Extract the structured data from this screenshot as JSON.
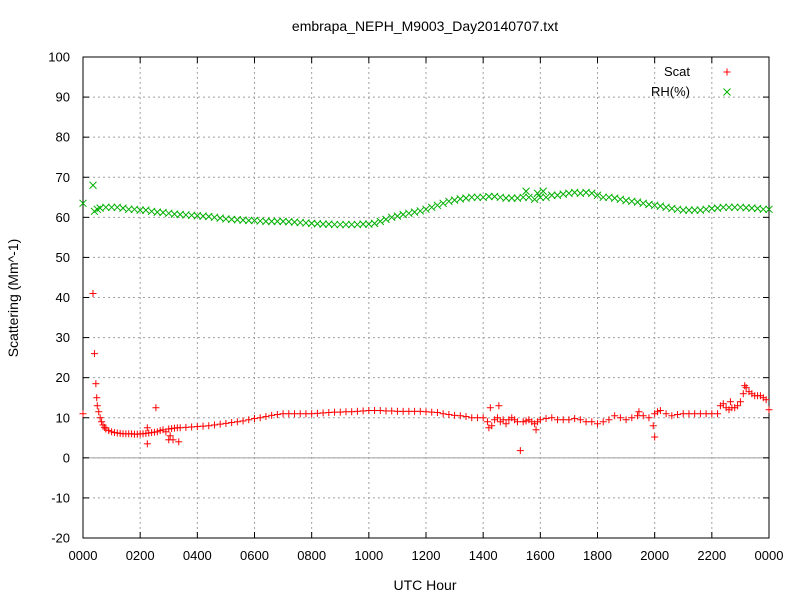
{
  "chart_data": {
    "type": "scatter",
    "title": "embrapa_NEPH_M9003_Day20140707.txt",
    "xlabel": "UTC Hour",
    "ylabel": "Scattering (Mm^-1)",
    "xlim": [
      0,
      24
    ],
    "ylim": [
      -20,
      100
    ],
    "xticks": [
      0,
      2,
      4,
      6,
      8,
      10,
      12,
      14,
      16,
      18,
      20,
      22,
      24
    ],
    "xtick_labels": [
      "0000",
      "0200",
      "0400",
      "0600",
      "0800",
      "1000",
      "1200",
      "1400",
      "1600",
      "1800",
      "2000",
      "2200",
      "0000"
    ],
    "yticks": [
      -20,
      -10,
      0,
      10,
      20,
      30,
      40,
      50,
      60,
      70,
      80,
      90,
      100
    ],
    "ytick_labels": [
      "-20",
      "-10",
      "0",
      "10",
      "20",
      "30",
      "40",
      "50",
      "60",
      "70",
      "80",
      "90",
      "100"
    ],
    "grid": true,
    "zero_line": true,
    "legend_position": "top-right",
    "series": [
      {
        "name": "Scat",
        "marker": "+",
        "color": "#ff0000",
        "points": [
          [
            0.0,
            11.0
          ],
          [
            0.35,
            41.0
          ],
          [
            0.4,
            26.0
          ],
          [
            0.45,
            18.5
          ],
          [
            0.48,
            15.0
          ],
          [
            0.5,
            13.0
          ],
          [
            0.55,
            11.5
          ],
          [
            0.6,
            10.0
          ],
          [
            0.65,
            9.0
          ],
          [
            0.7,
            8.2
          ],
          [
            0.75,
            7.6
          ],
          [
            0.8,
            7.2
          ],
          [
            0.9,
            6.8
          ],
          [
            1.0,
            6.5
          ],
          [
            1.1,
            6.3
          ],
          [
            1.2,
            6.2
          ],
          [
            1.3,
            6.1
          ],
          [
            1.4,
            6.0
          ],
          [
            1.5,
            6.0
          ],
          [
            1.6,
            6.0
          ],
          [
            1.7,
            6.0
          ],
          [
            1.8,
            5.9
          ],
          [
            1.9,
            5.9
          ],
          [
            2.0,
            6.0
          ],
          [
            2.1,
            6.0
          ],
          [
            2.2,
            6.1
          ],
          [
            2.25,
            3.5
          ],
          [
            2.25,
            7.5
          ],
          [
            2.3,
            6.2
          ],
          [
            2.4,
            6.3
          ],
          [
            2.5,
            6.4
          ],
          [
            2.55,
            12.5
          ],
          [
            2.6,
            6.5
          ],
          [
            2.7,
            6.8
          ],
          [
            2.8,
            7.0
          ],
          [
            2.9,
            6.5
          ],
          [
            3.0,
            4.5
          ],
          [
            3.0,
            7.2
          ],
          [
            3.05,
            5.5
          ],
          [
            3.1,
            7.3
          ],
          [
            3.15,
            4.5
          ],
          [
            3.2,
            7.4
          ],
          [
            3.3,
            7.5
          ],
          [
            3.35,
            4.0
          ],
          [
            3.4,
            7.5
          ],
          [
            3.6,
            7.6
          ],
          [
            3.8,
            7.7
          ],
          [
            4.0,
            7.8
          ],
          [
            4.2,
            7.9
          ],
          [
            4.4,
            8.0
          ],
          [
            4.6,
            8.2
          ],
          [
            4.8,
            8.4
          ],
          [
            5.0,
            8.6
          ],
          [
            5.2,
            8.8
          ],
          [
            5.4,
            9.0
          ],
          [
            5.6,
            9.2
          ],
          [
            5.8,
            9.5
          ],
          [
            6.0,
            9.8
          ],
          [
            6.2,
            10.0
          ],
          [
            6.4,
            10.3
          ],
          [
            6.6,
            10.6
          ],
          [
            6.8,
            10.8
          ],
          [
            7.0,
            11.0
          ],
          [
            7.2,
            11.0
          ],
          [
            7.4,
            11.0
          ],
          [
            7.6,
            11.0
          ],
          [
            7.8,
            11.0
          ],
          [
            8.0,
            11.0
          ],
          [
            8.2,
            11.1
          ],
          [
            8.4,
            11.2
          ],
          [
            8.6,
            11.3
          ],
          [
            8.8,
            11.4
          ],
          [
            9.0,
            11.4
          ],
          [
            9.2,
            11.5
          ],
          [
            9.4,
            11.5
          ],
          [
            9.6,
            11.6
          ],
          [
            9.8,
            11.7
          ],
          [
            10.0,
            11.8
          ],
          [
            10.2,
            11.8
          ],
          [
            10.4,
            11.8
          ],
          [
            10.6,
            11.7
          ],
          [
            10.8,
            11.7
          ],
          [
            11.0,
            11.6
          ],
          [
            11.2,
            11.6
          ],
          [
            11.4,
            11.6
          ],
          [
            11.6,
            11.6
          ],
          [
            11.8,
            11.6
          ],
          [
            12.0,
            11.5
          ],
          [
            12.2,
            11.4
          ],
          [
            12.4,
            11.3
          ],
          [
            12.6,
            11.0
          ],
          [
            12.8,
            10.8
          ],
          [
            13.0,
            10.6
          ],
          [
            13.2,
            10.5
          ],
          [
            13.4,
            10.3
          ],
          [
            13.6,
            10.0
          ],
          [
            13.8,
            10.0
          ],
          [
            14.0,
            10.0
          ],
          [
            14.15,
            9.0
          ],
          [
            14.2,
            7.5
          ],
          [
            14.25,
            12.5
          ],
          [
            14.3,
            8.0
          ],
          [
            14.4,
            9.5
          ],
          [
            14.5,
            10.0
          ],
          [
            14.55,
            13.0
          ],
          [
            14.6,
            9.0
          ],
          [
            14.7,
            9.5
          ],
          [
            14.8,
            8.5
          ],
          [
            14.9,
            9.5
          ],
          [
            15.0,
            10.0
          ],
          [
            15.1,
            9.5
          ],
          [
            15.2,
            9.0
          ],
          [
            15.3,
            1.8
          ],
          [
            15.4,
            9.0
          ],
          [
            15.5,
            9.2
          ],
          [
            15.6,
            9.5
          ],
          [
            15.7,
            9.0
          ],
          [
            15.8,
            8.5
          ],
          [
            15.85,
            7.0
          ],
          [
            15.9,
            9.0
          ],
          [
            16.0,
            9.5
          ],
          [
            16.2,
            9.8
          ],
          [
            16.4,
            10.0
          ],
          [
            16.6,
            9.5
          ],
          [
            16.8,
            9.5
          ],
          [
            17.0,
            9.5
          ],
          [
            17.2,
            9.8
          ],
          [
            17.4,
            9.5
          ],
          [
            17.6,
            9.0
          ],
          [
            17.8,
            9.0
          ],
          [
            18.0,
            8.5
          ],
          [
            18.2,
            9.0
          ],
          [
            18.4,
            9.5
          ],
          [
            18.6,
            10.5
          ],
          [
            18.8,
            10.0
          ],
          [
            19.0,
            9.5
          ],
          [
            19.2,
            10.0
          ],
          [
            19.4,
            10.5
          ],
          [
            19.45,
            11.5
          ],
          [
            19.6,
            10.5
          ],
          [
            19.8,
            10.0
          ],
          [
            19.95,
            8.0
          ],
          [
            20.0,
            5.2
          ],
          [
            20.0,
            11.0
          ],
          [
            20.1,
            11.5
          ],
          [
            20.2,
            11.8
          ],
          [
            20.4,
            11.0
          ],
          [
            20.6,
            10.5
          ],
          [
            20.8,
            10.8
          ],
          [
            21.0,
            11.0
          ],
          [
            21.2,
            11.0
          ],
          [
            21.4,
            11.0
          ],
          [
            21.6,
            11.0
          ],
          [
            21.8,
            11.0
          ],
          [
            22.0,
            11.0
          ],
          [
            22.2,
            11.0
          ],
          [
            22.3,
            13.0
          ],
          [
            22.4,
            13.5
          ],
          [
            22.5,
            12.5
          ],
          [
            22.6,
            12.0
          ],
          [
            22.65,
            14.0
          ],
          [
            22.7,
            12.5
          ],
          [
            22.8,
            12.5
          ],
          [
            22.9,
            13.0
          ],
          [
            23.0,
            14.0
          ],
          [
            23.1,
            16.0
          ],
          [
            23.15,
            18.0
          ],
          [
            23.2,
            17.5
          ],
          [
            23.3,
            16.5
          ],
          [
            23.4,
            16.0
          ],
          [
            23.5,
            15.5
          ],
          [
            23.6,
            15.5
          ],
          [
            23.7,
            15.5
          ],
          [
            23.8,
            15.0
          ],
          [
            23.9,
            14.5
          ],
          [
            24.0,
            12.0
          ]
        ]
      },
      {
        "name": "RH(%)",
        "marker": "x",
        "color": "#00b000",
        "points": [
          [
            0.0,
            63.5
          ],
          [
            0.35,
            68.0
          ],
          [
            0.4,
            61.5
          ],
          [
            0.5,
            62.0
          ],
          [
            0.6,
            62.3
          ],
          [
            0.8,
            62.5
          ],
          [
            1.0,
            62.5
          ],
          [
            1.2,
            62.5
          ],
          [
            1.4,
            62.3
          ],
          [
            1.6,
            62.0
          ],
          [
            1.8,
            62.0
          ],
          [
            2.0,
            61.8
          ],
          [
            2.2,
            61.8
          ],
          [
            2.4,
            61.5
          ],
          [
            2.6,
            61.3
          ],
          [
            2.8,
            61.2
          ],
          [
            3.0,
            61.0
          ],
          [
            3.2,
            60.8
          ],
          [
            3.4,
            60.7
          ],
          [
            3.6,
            60.6
          ],
          [
            3.8,
            60.5
          ],
          [
            4.0,
            60.4
          ],
          [
            4.2,
            60.3
          ],
          [
            4.4,
            60.2
          ],
          [
            4.6,
            60.0
          ],
          [
            4.8,
            59.8
          ],
          [
            5.0,
            59.6
          ],
          [
            5.2,
            59.5
          ],
          [
            5.4,
            59.4
          ],
          [
            5.6,
            59.3
          ],
          [
            5.8,
            59.2
          ],
          [
            6.0,
            59.2
          ],
          [
            6.2,
            59.1
          ],
          [
            6.4,
            59.0
          ],
          [
            6.6,
            59.0
          ],
          [
            6.8,
            59.0
          ],
          [
            7.0,
            59.0
          ],
          [
            7.2,
            58.9
          ],
          [
            7.4,
            58.8
          ],
          [
            7.6,
            58.7
          ],
          [
            7.8,
            58.6
          ],
          [
            8.0,
            58.5
          ],
          [
            8.2,
            58.4
          ],
          [
            8.4,
            58.3
          ],
          [
            8.6,
            58.3
          ],
          [
            8.8,
            58.2
          ],
          [
            9.0,
            58.2
          ],
          [
            9.2,
            58.2
          ],
          [
            9.4,
            58.2
          ],
          [
            9.6,
            58.2
          ],
          [
            9.8,
            58.3
          ],
          [
            10.0,
            58.3
          ],
          [
            10.2,
            58.5
          ],
          [
            10.4,
            59.0
          ],
          [
            10.6,
            59.5
          ],
          [
            10.8,
            60.0
          ],
          [
            11.0,
            60.3
          ],
          [
            11.2,
            60.7
          ],
          [
            11.4,
            61.0
          ],
          [
            11.6,
            61.3
          ],
          [
            11.8,
            61.6
          ],
          [
            12.0,
            62.0
          ],
          [
            12.2,
            62.5
          ],
          [
            12.4,
            63.0
          ],
          [
            12.6,
            63.5
          ],
          [
            12.8,
            64.0
          ],
          [
            13.0,
            64.3
          ],
          [
            13.2,
            64.6
          ],
          [
            13.4,
            64.8
          ],
          [
            13.6,
            65.0
          ],
          [
            13.8,
            65.0
          ],
          [
            14.0,
            65.0
          ],
          [
            14.2,
            65.2
          ],
          [
            14.4,
            65.2
          ],
          [
            14.6,
            65.0
          ],
          [
            14.8,
            64.8
          ],
          [
            15.0,
            64.8
          ],
          [
            15.2,
            64.8
          ],
          [
            15.4,
            65.0
          ],
          [
            15.5,
            66.5
          ],
          [
            15.6,
            65.0
          ],
          [
            15.8,
            64.5
          ],
          [
            15.9,
            66.0
          ],
          [
            16.0,
            65.0
          ],
          [
            16.1,
            66.5
          ],
          [
            16.2,
            65.0
          ],
          [
            16.4,
            65.5
          ],
          [
            16.6,
            65.5
          ],
          [
            16.8,
            65.8
          ],
          [
            17.0,
            66.0
          ],
          [
            17.2,
            66.2
          ],
          [
            17.4,
            66.0
          ],
          [
            17.6,
            66.2
          ],
          [
            17.8,
            66.0
          ],
          [
            18.0,
            65.5
          ],
          [
            18.2,
            65.0
          ],
          [
            18.4,
            65.0
          ],
          [
            18.6,
            64.8
          ],
          [
            18.8,
            64.5
          ],
          [
            19.0,
            64.2
          ],
          [
            19.2,
            64.0
          ],
          [
            19.4,
            63.8
          ],
          [
            19.6,
            63.5
          ],
          [
            19.8,
            63.2
          ],
          [
            20.0,
            63.0
          ],
          [
            20.2,
            62.8
          ],
          [
            20.4,
            62.5
          ],
          [
            20.6,
            62.2
          ],
          [
            20.8,
            62.0
          ],
          [
            21.0,
            61.8
          ],
          [
            21.2,
            61.8
          ],
          [
            21.4,
            61.8
          ],
          [
            21.6,
            61.8
          ],
          [
            21.8,
            62.0
          ],
          [
            22.0,
            62.2
          ],
          [
            22.2,
            62.3
          ],
          [
            22.4,
            62.5
          ],
          [
            22.6,
            62.5
          ],
          [
            22.8,
            62.5
          ],
          [
            23.0,
            62.5
          ],
          [
            23.2,
            62.4
          ],
          [
            23.4,
            62.3
          ],
          [
            23.6,
            62.2
          ],
          [
            23.8,
            62.0
          ],
          [
            24.0,
            62.0
          ]
        ]
      }
    ]
  }
}
